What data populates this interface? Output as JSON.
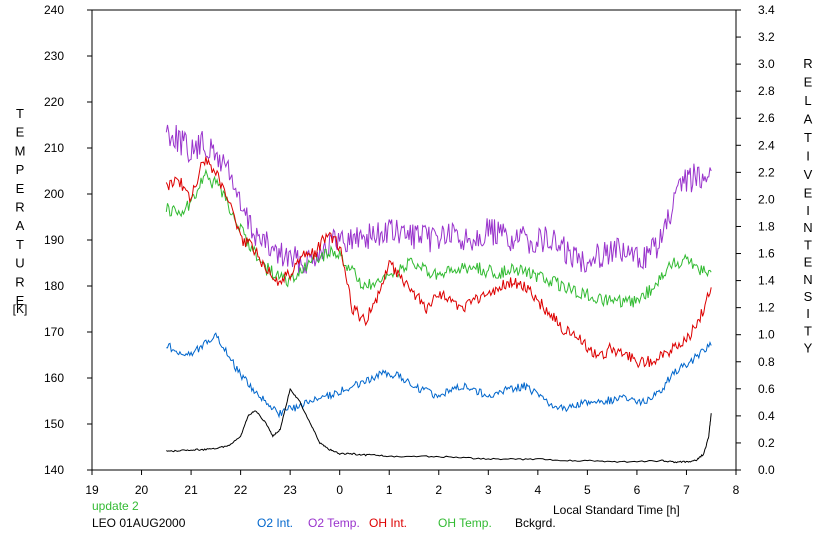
{
  "chart_data": {
    "type": "line",
    "xlabel": "Local Standard Time [h]",
    "ylabel_left_letters": [
      "T",
      "E",
      "M",
      "P",
      "E",
      "R",
      "A",
      "T",
      "U",
      "R",
      "E"
    ],
    "ylabel_left_unit": "[K]",
    "ylabel_right_letters": [
      "R",
      "E",
      "L",
      "A",
      "T",
      "I",
      "V",
      "E",
      "I",
      "N",
      "T",
      "E",
      "N",
      "S",
      "I",
      "T",
      "Y"
    ],
    "x_ticks": [
      {
        "v": 19,
        "label": "19"
      },
      {
        "v": 20,
        "label": "20"
      },
      {
        "v": 21,
        "label": "21"
      },
      {
        "v": 22,
        "label": "22"
      },
      {
        "v": 23,
        "label": "23"
      },
      {
        "v": 24,
        "label": "0"
      },
      {
        "v": 25,
        "label": "1"
      },
      {
        "v": 26,
        "label": "2"
      },
      {
        "v": 27,
        "label": "3"
      },
      {
        "v": 28,
        "label": "4"
      },
      {
        "v": 29,
        "label": "5"
      },
      {
        "v": 30,
        "label": "6"
      },
      {
        "v": 31,
        "label": "7"
      },
      {
        "v": 32,
        "label": "8"
      }
    ],
    "xlim": [
      19,
      32
    ],
    "y_left_ticks": [
      "140",
      "150",
      "160",
      "170",
      "180",
      "190",
      "200",
      "210",
      "220",
      "230",
      "240"
    ],
    "y_left_lim": [
      140,
      240
    ],
    "y_right_ticks": [
      "0.0",
      "0.2",
      "0.4",
      "0.6",
      "0.8",
      "1.0",
      "1.2",
      "1.4",
      "1.6",
      "1.8",
      "2.0",
      "2.2",
      "2.4",
      "2.6",
      "2.8",
      "3.0",
      "3.2",
      "3.4"
    ],
    "y_right_lim": [
      0,
      3.4
    ],
    "legend": [
      {
        "label": "O2 Int.",
        "color": "#0066cc"
      },
      {
        "label": "O2 Temp.",
        "color": "#9933cc"
      },
      {
        "label": "OH Int.",
        "color": "#dd0000"
      },
      {
        "label": "OH Temp.",
        "color": "#33bb33"
      },
      {
        "label": "Bckgrd.",
        "color": "#000000"
      }
    ],
    "legend_placement": "bottom",
    "series": [
      {
        "name": "O2 Temp.",
        "axis": "left",
        "color": "#9933cc",
        "x": [
          20.5,
          20.75,
          21.0,
          21.25,
          21.5,
          21.75,
          22.0,
          22.25,
          22.5,
          22.75,
          23.0,
          23.25,
          23.5,
          23.75,
          24.0,
          24.25,
          24.5,
          24.75,
          25.0,
          25.25,
          25.5,
          25.75,
          26.0,
          26.25,
          26.5,
          26.75,
          27.0,
          27.25,
          27.5,
          27.75,
          28.0,
          28.25,
          28.5,
          28.75,
          29.0,
          29.25,
          29.5,
          29.75,
          30.0,
          30.25,
          30.5,
          30.75,
          31.0,
          31.25,
          31.5
        ],
        "y": [
          214,
          212,
          209,
          211,
          208,
          206,
          197,
          192,
          189,
          187,
          186,
          185,
          187,
          189,
          190,
          190,
          191,
          191,
          192,
          191,
          191,
          190,
          191,
          191,
          190,
          191,
          192,
          191,
          190,
          190,
          190,
          190,
          188,
          186,
          186,
          187,
          188,
          187,
          186,
          187,
          190,
          198,
          203,
          204,
          205
        ]
      },
      {
        "name": "OH Temp.",
        "axis": "left",
        "color": "#33bb33",
        "x": [
          20.5,
          20.75,
          21.0,
          21.25,
          21.5,
          21.75,
          22.0,
          22.25,
          22.5,
          22.75,
          23.0,
          23.25,
          23.5,
          23.75,
          24.0,
          24.25,
          24.5,
          24.75,
          25.0,
          25.25,
          25.5,
          25.75,
          26.0,
          26.25,
          26.5,
          26.75,
          27.0,
          27.25,
          27.5,
          27.75,
          28.0,
          28.25,
          28.5,
          28.75,
          29.0,
          29.25,
          29.5,
          29.75,
          30.0,
          30.25,
          30.5,
          30.75,
          31.0,
          31.25,
          31.5
        ],
        "y": [
          197,
          196,
          198,
          204,
          202,
          198,
          192,
          188,
          184,
          182,
          181,
          183,
          186,
          187,
          187,
          183,
          180,
          180,
          182,
          184,
          185,
          183,
          182,
          183,
          184,
          184,
          183,
          183,
          184,
          183,
          182,
          181,
          180,
          179,
          178,
          177,
          177,
          176,
          177,
          179,
          182,
          185,
          186,
          184,
          183
        ]
      },
      {
        "name": "OH Int.",
        "axis": "right",
        "color": "#dd0000",
        "x": [
          20.5,
          20.75,
          21.0,
          21.25,
          21.5,
          21.75,
          22.0,
          22.25,
          22.5,
          22.75,
          23.0,
          23.25,
          23.5,
          23.75,
          24.0,
          24.25,
          24.5,
          24.75,
          25.0,
          25.25,
          25.5,
          25.75,
          26.0,
          26.25,
          26.5,
          26.75,
          27.0,
          27.25,
          27.5,
          27.75,
          28.0,
          28.25,
          28.5,
          28.75,
          29.0,
          29.25,
          29.5,
          29.75,
          30.0,
          30.25,
          30.5,
          30.75,
          31.0,
          31.25,
          31.5
        ],
        "y": [
          2.1,
          2.15,
          2.0,
          2.3,
          2.2,
          2.0,
          1.7,
          1.65,
          1.5,
          1.4,
          1.45,
          1.6,
          1.6,
          1.75,
          1.65,
          1.2,
          1.1,
          1.25,
          1.55,
          1.4,
          1.3,
          1.2,
          1.3,
          1.25,
          1.2,
          1.25,
          1.3,
          1.35,
          1.4,
          1.35,
          1.25,
          1.15,
          1.05,
          1.0,
          0.9,
          0.85,
          0.9,
          0.85,
          0.8,
          0.8,
          0.85,
          0.9,
          0.95,
          1.1,
          1.35
        ]
      },
      {
        "name": "O2 Int.",
        "axis": "right",
        "color": "#0066cc",
        "x": [
          20.5,
          20.75,
          21.0,
          21.25,
          21.5,
          21.75,
          22.0,
          22.25,
          22.5,
          22.75,
          23.0,
          23.25,
          23.5,
          23.75,
          24.0,
          24.25,
          24.5,
          24.75,
          25.0,
          25.25,
          25.5,
          25.75,
          26.0,
          26.25,
          26.5,
          26.75,
          27.0,
          27.25,
          27.5,
          27.75,
          28.0,
          28.25,
          28.5,
          28.75,
          29.0,
          29.25,
          29.5,
          29.75,
          30.0,
          30.25,
          30.5,
          30.75,
          31.0,
          31.25,
          31.5
        ],
        "y": [
          0.92,
          0.88,
          0.86,
          0.92,
          1.0,
          0.85,
          0.7,
          0.6,
          0.5,
          0.42,
          0.45,
          0.48,
          0.52,
          0.55,
          0.58,
          0.62,
          0.65,
          0.7,
          0.72,
          0.68,
          0.62,
          0.58,
          0.55,
          0.6,
          0.62,
          0.58,
          0.55,
          0.58,
          0.6,
          0.62,
          0.55,
          0.48,
          0.45,
          0.48,
          0.5,
          0.5,
          0.52,
          0.55,
          0.5,
          0.52,
          0.6,
          0.72,
          0.78,
          0.85,
          0.92
        ]
      },
      {
        "name": "Bckgrd.",
        "axis": "right",
        "color": "#000000",
        "x": [
          20.5,
          20.75,
          21.0,
          21.25,
          21.5,
          21.75,
          22.0,
          22.15,
          22.3,
          22.5,
          22.65,
          22.8,
          23.0,
          23.2,
          23.4,
          23.6,
          23.8,
          24.0,
          24.25,
          24.5,
          24.75,
          25.0,
          25.5,
          26.0,
          26.5,
          27.0,
          27.5,
          28.0,
          28.5,
          29.0,
          29.5,
          30.0,
          30.5,
          30.75,
          31.0,
          31.2,
          31.35,
          31.45,
          31.5
        ],
        "y": [
          0.14,
          0.14,
          0.15,
          0.15,
          0.16,
          0.18,
          0.25,
          0.4,
          0.44,
          0.35,
          0.25,
          0.3,
          0.6,
          0.5,
          0.35,
          0.2,
          0.15,
          0.12,
          0.12,
          0.11,
          0.11,
          0.1,
          0.1,
          0.1,
          0.09,
          0.08,
          0.08,
          0.08,
          0.07,
          0.07,
          0.06,
          0.06,
          0.07,
          0.06,
          0.06,
          0.07,
          0.12,
          0.25,
          0.42
        ]
      }
    ]
  },
  "footer": {
    "update_text": "update 2",
    "station_date": "LEO 01AUG2000"
  },
  "colors": {
    "frame": "#000000",
    "update_text": "#33bb33"
  }
}
